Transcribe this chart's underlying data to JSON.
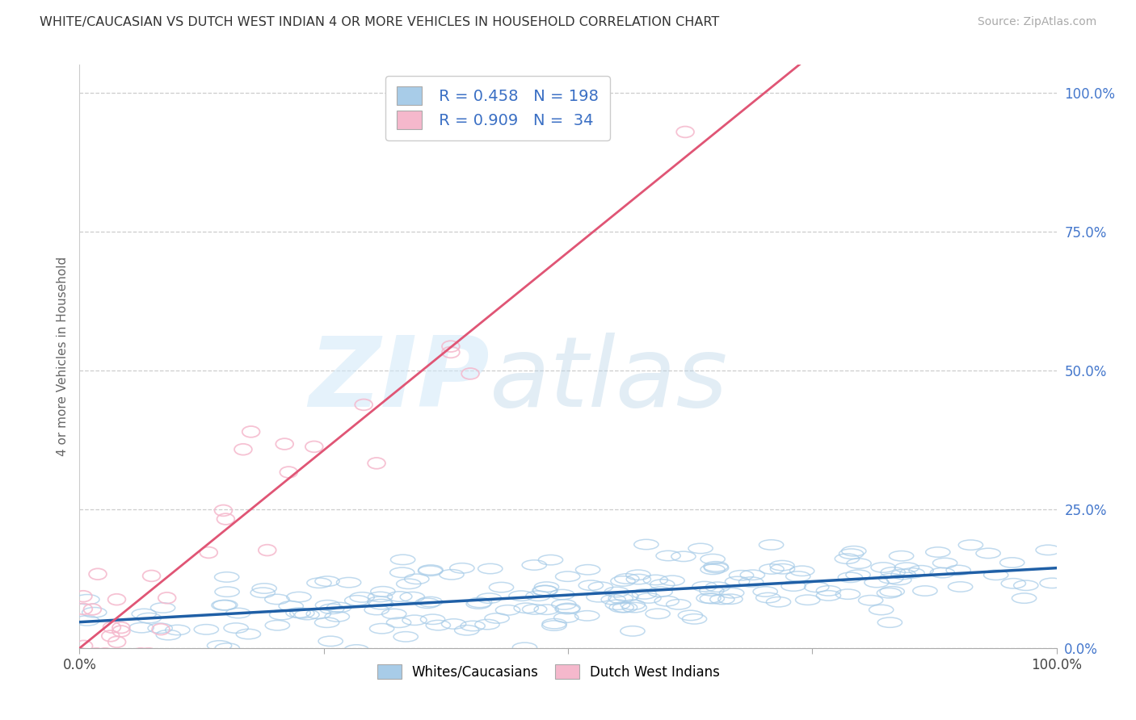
{
  "title": "WHITE/CAUCASIAN VS DUTCH WEST INDIAN 4 OR MORE VEHICLES IN HOUSEHOLD CORRELATION CHART",
  "source": "Source: ZipAtlas.com",
  "ylabel": "4 or more Vehicles in Household",
  "watermark_zip": "ZIP",
  "watermark_atlas": "atlas",
  "blue_label": "Whites/Caucasians",
  "pink_label": "Dutch West Indians",
  "blue_R": 0.458,
  "blue_N": 198,
  "pink_R": 0.909,
  "pink_N": 34,
  "blue_color": "#a8cce8",
  "pink_color": "#f5b8cc",
  "blue_line_color": "#1f5fa6",
  "pink_line_color": "#e05575",
  "legend_color": "#3a6fc4",
  "background_color": "#ffffff",
  "grid_color": "#c8c8c8",
  "right_axis_color": "#4477cc",
  "title_color": "#333333",
  "xlim": [
    0,
    1
  ],
  "ylim": [
    0,
    1.05
  ],
  "right_yticks": [
    0.0,
    0.25,
    0.5,
    0.75,
    1.0
  ],
  "right_yticklabels": [
    "0.0%",
    "25.0%",
    "50.0%",
    "75.0%",
    "100.0%"
  ]
}
